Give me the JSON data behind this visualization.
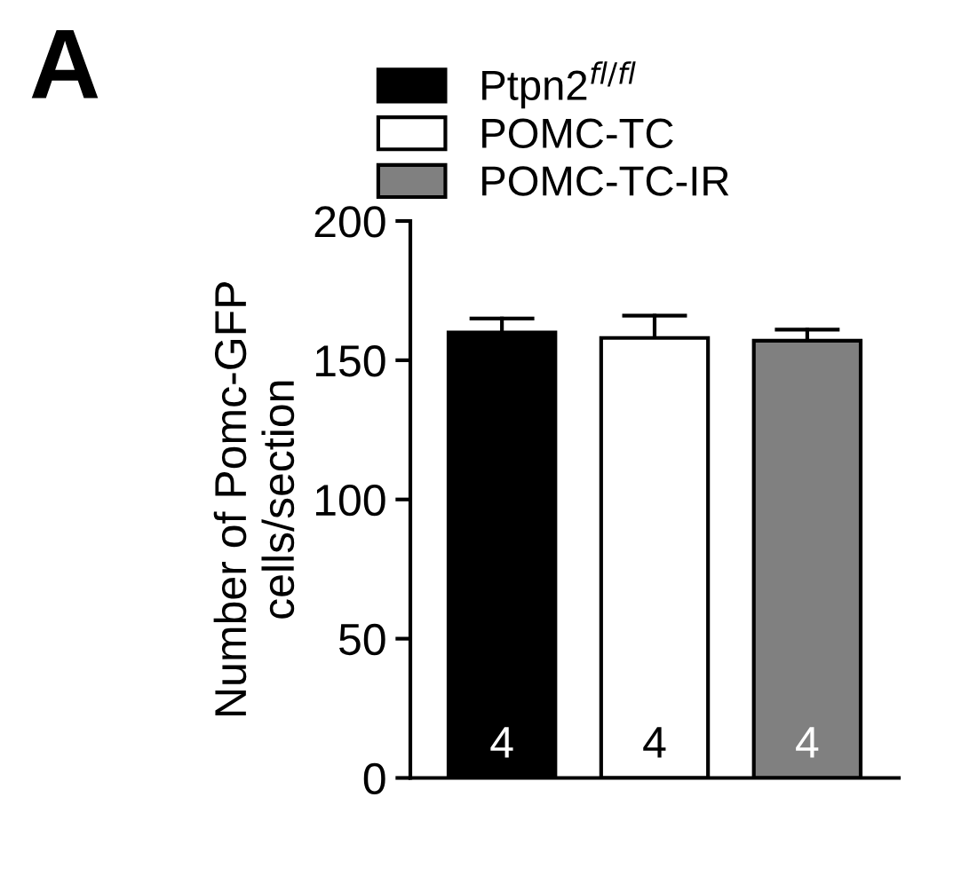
{
  "chart_data": {
    "type": "bar",
    "ylabel": "Number of Pomc-GFP\ncells/section",
    "categories": [
      null
    ],
    "series": [
      {
        "name": "Ptpn2$^{fl/fl}$",
        "color": "#000000",
        "values": [
          160
        ],
        "errors": [
          [
            160,
            165
          ]
        ]
      },
      {
        "name": "POMC-TC",
        "color": "#ffffff",
        "values": [
          158
        ],
        "errors": [
          [
            158,
            166
          ]
        ]
      },
      {
        "name": "POMC-TC-IR",
        "color": "#808080",
        "values": [
          157
        ],
        "errors": [
          [
            157,
            161
          ]
        ]
      }
    ],
    "annotations": [
      "A",
      "4",
      "4",
      "4"
    ],
    "ylim": [
      0,
      200
    ],
    "yticks": [
      0,
      50,
      100,
      150,
      200
    ],
    "grid": false,
    "legend": "top",
    "tick_labels": "y"
  }
}
